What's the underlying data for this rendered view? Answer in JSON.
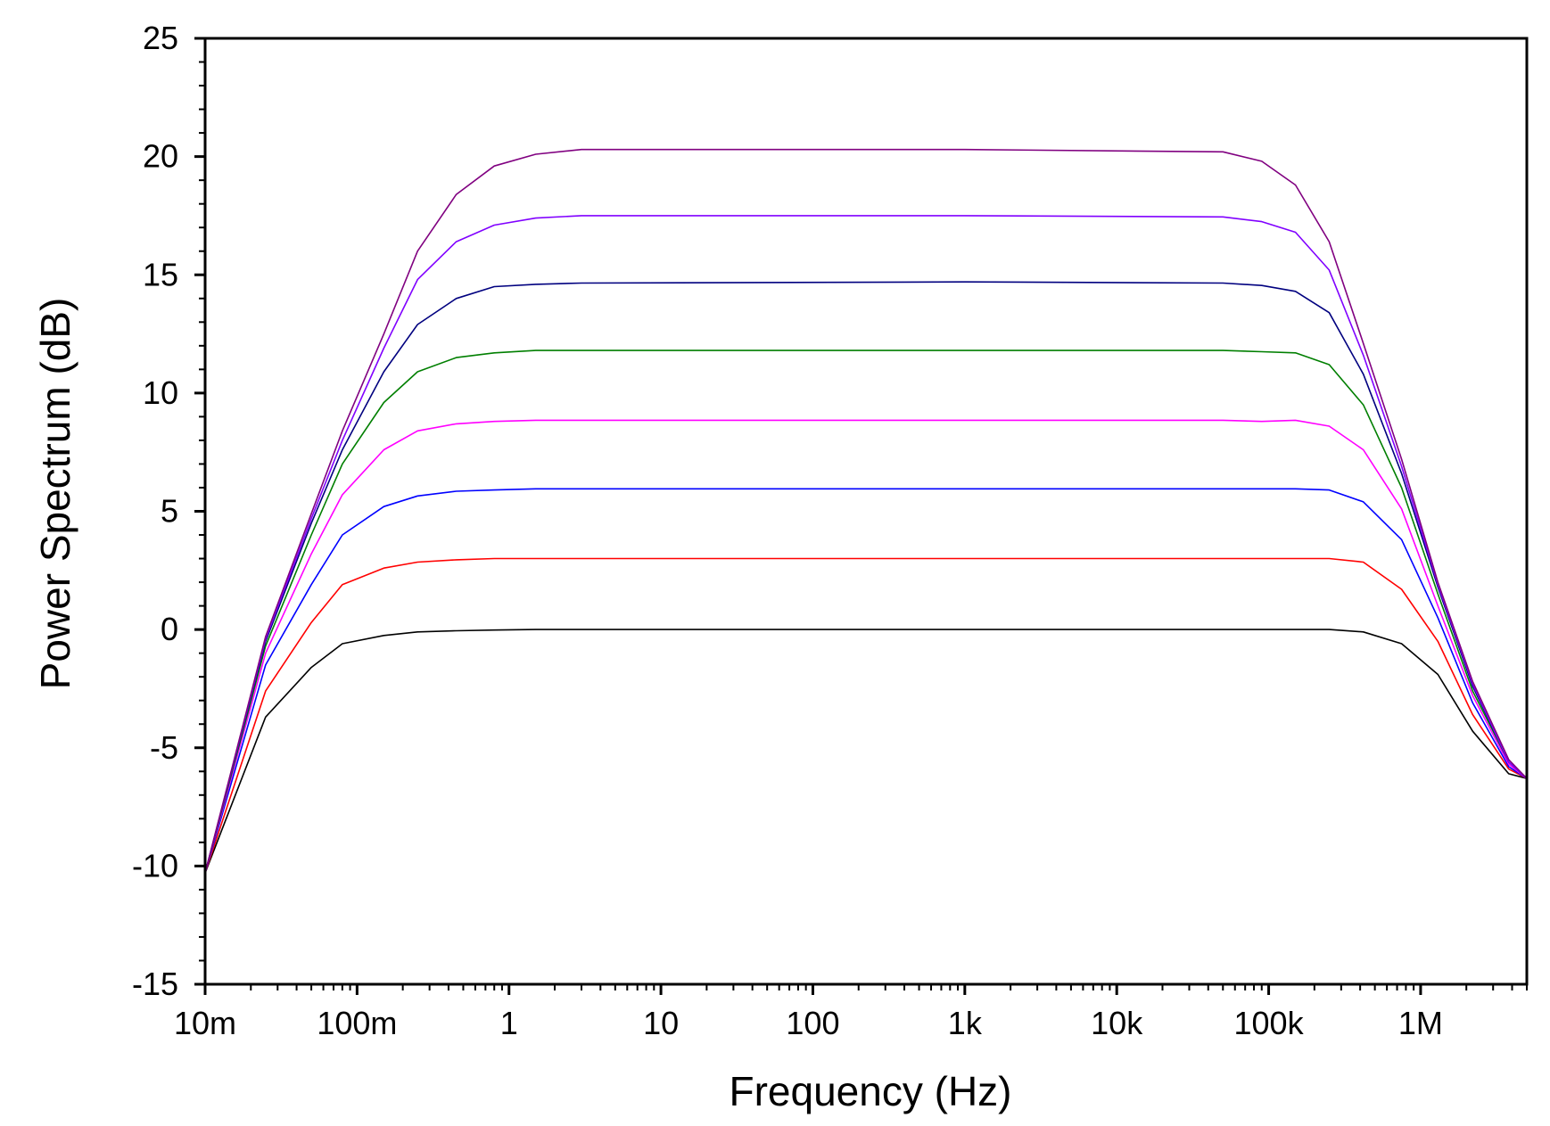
{
  "chart_data": {
    "type": "line",
    "title": "",
    "xlabel": "Frequency (Hz)",
    "ylabel": "Power Spectrum (dB)",
    "x_scale": "log",
    "xlim": [
      0.01,
      5000000
    ],
    "ylim": [
      -15,
      25
    ],
    "grid": false,
    "legend": "none",
    "x_ticks": [
      {
        "value": 0.01,
        "label": "10m"
      },
      {
        "value": 0.1,
        "label": "100m"
      },
      {
        "value": 1,
        "label": "1"
      },
      {
        "value": 10,
        "label": "10"
      },
      {
        "value": 100,
        "label": "100"
      },
      {
        "value": 1000,
        "label": "1k"
      },
      {
        "value": 10000,
        "label": "10k"
      },
      {
        "value": 100000,
        "label": "100k"
      },
      {
        "value": 1000000,
        "label": "1M"
      }
    ],
    "y_ticks": [
      {
        "value": 25,
        "label": "25"
      },
      {
        "value": 20,
        "label": "20"
      },
      {
        "value": 15,
        "label": "15"
      },
      {
        "value": 10,
        "label": "10"
      },
      {
        "value": 5,
        "label": "5"
      },
      {
        "value": 0,
        "label": "0"
      },
      {
        "value": -5,
        "label": "-5"
      },
      {
        "value": -10,
        "label": "-10"
      },
      {
        "value": -15,
        "label": "-15"
      }
    ],
    "x": [
      0.01,
      0.025,
      0.05,
      0.08,
      0.15,
      0.25,
      0.45,
      0.8,
      1.5,
      3,
      1000,
      50000,
      90000,
      150000,
      250000,
      420000,
      750000,
      1300000,
      2200000,
      3800000,
      5000000
    ],
    "series": [
      {
        "color": "#000000",
        "values": [
          -10.3,
          -3.7,
          -1.6,
          -0.6,
          -0.25,
          -0.1,
          -0.05,
          -0.02,
          0,
          0,
          0,
          0,
          0,
          0,
          0,
          -0.1,
          -0.6,
          -1.9,
          -4.3,
          -6.1,
          -6.3
        ]
      },
      {
        "color": "#ff0000",
        "values": [
          -10.3,
          -2.6,
          0.3,
          1.9,
          2.6,
          2.85,
          2.95,
          3,
          3,
          3,
          3,
          3,
          3,
          3,
          3,
          2.85,
          1.7,
          -0.5,
          -3.6,
          -5.9,
          -6.3
        ]
      },
      {
        "color": "#0000ff",
        "values": [
          -10.3,
          -1.5,
          1.9,
          4,
          5.2,
          5.65,
          5.85,
          5.9,
          5.95,
          5.95,
          5.95,
          5.95,
          5.95,
          5.95,
          5.9,
          5.4,
          3.8,
          0.5,
          -3.1,
          -5.8,
          -6.3
        ]
      },
      {
        "color": "#ff00ff",
        "values": [
          -10.3,
          -1.0,
          3.2,
          5.7,
          7.6,
          8.4,
          8.7,
          8.8,
          8.85,
          8.85,
          8.85,
          8.85,
          8.8,
          8.85,
          8.6,
          7.6,
          5.1,
          1.0,
          -2.8,
          -5.7,
          -6.3
        ]
      },
      {
        "color": "#007f00",
        "values": [
          -10.3,
          -0.7,
          4.0,
          7.0,
          9.6,
          10.9,
          11.5,
          11.7,
          11.8,
          11.8,
          11.8,
          11.8,
          11.75,
          11.7,
          11.2,
          9.5,
          6.0,
          1.5,
          -2.6,
          -5.6,
          -6.3
        ]
      },
      {
        "color": "#00007f",
        "values": [
          -10.3,
          -0.5,
          4.5,
          7.6,
          10.9,
          12.9,
          14.0,
          14.5,
          14.6,
          14.65,
          14.7,
          14.65,
          14.55,
          14.3,
          13.4,
          10.8,
          6.6,
          1.8,
          -2.4,
          -5.6,
          -6.3
        ]
      },
      {
        "color": "#8000ff",
        "values": [
          -10.3,
          -0.4,
          4.7,
          8.0,
          11.9,
          14.8,
          16.4,
          17.1,
          17.4,
          17.5,
          17.5,
          17.45,
          17.25,
          16.8,
          15.2,
          11.6,
          6.9,
          1.9,
          -2.3,
          -5.6,
          -6.3
        ]
      },
      {
        "color": "#800080",
        "values": [
          -10.3,
          -0.3,
          4.9,
          8.4,
          12.5,
          16.0,
          18.4,
          19.6,
          20.1,
          20.3,
          20.3,
          20.2,
          19.8,
          18.8,
          16.4,
          12.1,
          7.2,
          2.0,
          -2.2,
          -5.5,
          -6.3
        ]
      }
    ]
  }
}
